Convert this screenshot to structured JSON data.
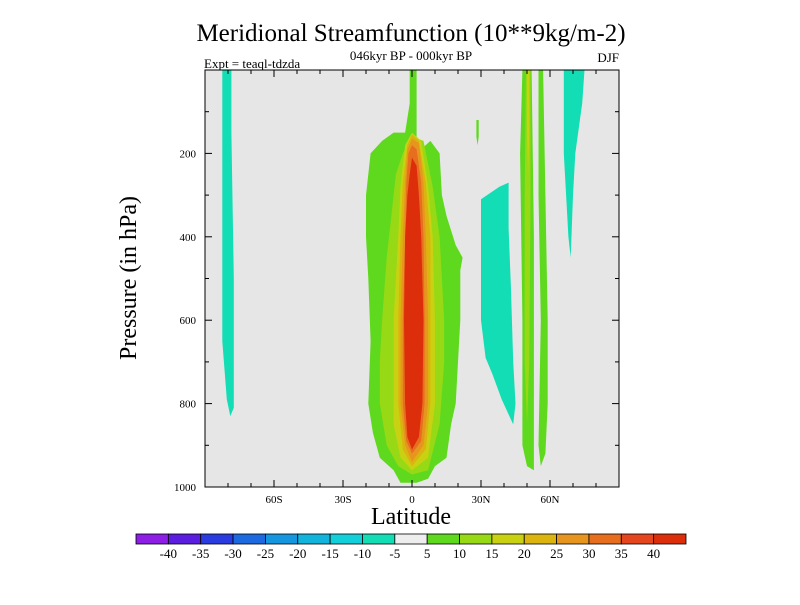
{
  "chart_data": {
    "type": "heatmap",
    "title": "Meridional Streamfunction (10**9kg/m-2)",
    "subtitle": "046kyr BP - 000kyr BP",
    "experiment": "Expt = teaql-tdzda",
    "season": "DJF",
    "xlabel": "Latitude",
    "ylabel": "Pressure (in hPa)",
    "xlim": [
      -90,
      90
    ],
    "ylim": [
      0,
      1000
    ],
    "x_ticks": [
      {
        "value": -60,
        "label": "60S"
      },
      {
        "value": -30,
        "label": "30S"
      },
      {
        "value": 0,
        "label": "0"
      },
      {
        "value": 30,
        "label": "30N"
      },
      {
        "value": 60,
        "label": "60N"
      }
    ],
    "y_ticks": [
      {
        "value": 200,
        "label": "200"
      },
      {
        "value": 400,
        "label": "400"
      },
      {
        "value": 600,
        "label": "600"
      },
      {
        "value": 800,
        "label": "800"
      },
      {
        "value": 1000,
        "label": "1000"
      }
    ],
    "background_color": "#e6e6e6",
    "colorbar": {
      "labels": [
        "-40",
        "-35",
        "-30",
        "-25",
        "-20",
        "-15",
        "-10",
        "-5",
        "5",
        "10",
        "15",
        "20",
        "25",
        "30",
        "35",
        "40"
      ],
      "colors": [
        "#8c1ee6",
        "#5b1ee0",
        "#2a3ce0",
        "#1d6ae0",
        "#1796e0",
        "#12b4dc",
        "#12cfd9",
        "#12ddb4",
        "#eeeeee",
        "#5ed91e",
        "#96d914",
        "#c8d212",
        "#dcb40f",
        "#e6961e",
        "#e66e1e",
        "#e6461e",
        "#dc2e0a"
      ]
    },
    "contours": [
      {
        "name": "sh-negative-cell",
        "level": "-10 to -5",
        "color": "#12ddb4",
        "points": [
          [
            -82.5,
            0
          ],
          [
            -78.5,
            0
          ],
          [
            -78.5,
            150
          ],
          [
            -77.5,
            500
          ],
          [
            -77.5,
            810
          ],
          [
            -79,
            830
          ],
          [
            -80.5,
            790
          ],
          [
            -82.5,
            650
          ]
        ]
      },
      {
        "name": "eq-green",
        "level": "5 to 10",
        "color": "#5ed91e",
        "points": [
          [
            -1,
            0
          ],
          [
            2,
            0
          ],
          [
            2,
            200
          ],
          [
            8,
            170
          ],
          [
            12,
            200
          ],
          [
            13,
            300
          ],
          [
            15,
            350
          ],
          [
            19,
            420
          ],
          [
            22,
            450
          ],
          [
            21,
            480
          ],
          [
            21,
            600
          ],
          [
            20,
            700
          ],
          [
            19,
            800
          ],
          [
            17,
            850
          ],
          [
            15,
            930
          ],
          [
            10,
            950
          ],
          [
            7,
            980
          ],
          [
            2,
            990
          ],
          [
            -5,
            990
          ],
          [
            -8,
            960
          ],
          [
            -14,
            930
          ],
          [
            -17,
            870
          ],
          [
            -19,
            800
          ],
          [
            -18,
            650
          ],
          [
            -19,
            500
          ],
          [
            -20,
            400
          ],
          [
            -20,
            300
          ],
          [
            -18,
            200
          ],
          [
            -13,
            170
          ],
          [
            -8,
            150
          ],
          [
            -3,
            150
          ],
          [
            -1,
            80
          ]
        ]
      },
      {
        "name": "eq-lightgreen",
        "level": "10 to 15",
        "color": "#96d914",
        "points": [
          [
            -7,
            250
          ],
          [
            -4,
            200
          ],
          [
            0,
            160
          ],
          [
            5,
            170
          ],
          [
            9,
            280
          ],
          [
            12,
            400
          ],
          [
            14,
            600
          ],
          [
            14,
            700
          ],
          [
            12,
            850
          ],
          [
            7,
            960
          ],
          [
            0,
            970
          ],
          [
            -6,
            950
          ],
          [
            -11,
            900
          ],
          [
            -14,
            800
          ],
          [
            -14,
            700
          ],
          [
            -13,
            600
          ],
          [
            -11,
            450
          ],
          [
            -9,
            350
          ]
        ]
      },
      {
        "name": "eq-yellow",
        "level": "15 to 20",
        "color": "#c8d212",
        "points": [
          [
            -3,
            180
          ],
          [
            0,
            150
          ],
          [
            4,
            170
          ],
          [
            7,
            280
          ],
          [
            9,
            400
          ],
          [
            10,
            600
          ],
          [
            10,
            800
          ],
          [
            7,
            930
          ],
          [
            0,
            960
          ],
          [
            -5,
            930
          ],
          [
            -8,
            850
          ],
          [
            -8,
            600
          ],
          [
            -6,
            400
          ],
          [
            -5,
            280
          ]
        ]
      },
      {
        "name": "eq-gold",
        "level": "20 to 25",
        "color": "#dcb40f",
        "points": [
          [
            -2,
            180
          ],
          [
            0,
            155
          ],
          [
            3,
            170
          ],
          [
            6,
            270
          ],
          [
            8,
            400
          ],
          [
            8,
            600
          ],
          [
            8,
            800
          ],
          [
            6,
            910
          ],
          [
            0,
            950
          ],
          [
            -4,
            910
          ],
          [
            -6,
            800
          ],
          [
            -6,
            600
          ],
          [
            -5,
            400
          ],
          [
            -4,
            270
          ]
        ]
      },
      {
        "name": "eq-orange",
        "level": "25 to 30",
        "color": "#e6961e",
        "points": [
          [
            -2,
            190
          ],
          [
            0,
            165
          ],
          [
            3,
            175
          ],
          [
            5,
            270
          ],
          [
            6,
            400
          ],
          [
            7,
            600
          ],
          [
            7,
            800
          ],
          [
            5,
            900
          ],
          [
            0,
            940
          ],
          [
            -3,
            900
          ],
          [
            -5,
            800
          ],
          [
            -5,
            600
          ],
          [
            -4,
            400
          ],
          [
            -3,
            270
          ]
        ]
      },
      {
        "name": "eq-darkorange",
        "level": "30 to 35",
        "color": "#e66e1e",
        "points": [
          [
            -1.5,
            200
          ],
          [
            0,
            180
          ],
          [
            2,
            190
          ],
          [
            4,
            270
          ],
          [
            5,
            400
          ],
          [
            5.5,
            600
          ],
          [
            5.5,
            800
          ],
          [
            4,
            890
          ],
          [
            0,
            920
          ],
          [
            -2.5,
            890
          ],
          [
            -4,
            800
          ],
          [
            -4,
            600
          ],
          [
            -3,
            400
          ],
          [
            -2.5,
            270
          ]
        ]
      },
      {
        "name": "eq-red",
        "level": "above 35",
        "color": "#dc2e0a",
        "points": [
          [
            -1,
            250
          ],
          [
            0,
            210
          ],
          [
            2,
            230
          ],
          [
            3,
            300
          ],
          [
            4,
            400
          ],
          [
            5,
            600
          ],
          [
            4.5,
            800
          ],
          [
            3,
            880
          ],
          [
            0,
            910
          ],
          [
            -2,
            880
          ],
          [
            -3,
            800
          ],
          [
            -3.5,
            600
          ],
          [
            -3,
            400
          ],
          [
            -2,
            300
          ]
        ]
      },
      {
        "name": "nh-cyan-band",
        "level": "-10 to -5",
        "color": "#12ddb4",
        "points": [
          [
            30,
            310
          ],
          [
            38,
            280
          ],
          [
            42,
            270
          ],
          [
            42,
            380
          ],
          [
            43,
            520
          ],
          [
            44,
            700
          ],
          [
            45,
            800
          ],
          [
            44,
            850
          ],
          [
            39,
            790
          ],
          [
            35,
            730
          ],
          [
            32,
            690
          ],
          [
            30,
            600
          ]
        ]
      },
      {
        "name": "nh-green-band",
        "level": "5 to 10",
        "color": "#5ed91e",
        "points": [
          [
            48,
            0
          ],
          [
            52,
            0
          ],
          [
            53,
            400
          ],
          [
            53,
            700
          ],
          [
            53,
            960
          ],
          [
            50,
            950
          ],
          [
            48,
            900
          ],
          [
            48,
            600
          ],
          [
            47,
            200
          ]
        ]
      },
      {
        "name": "nh-green-band-inner",
        "level": "10 to 15",
        "color": "#96d914",
        "points": [
          [
            49.5,
            0
          ],
          [
            51.5,
            0
          ],
          [
            51.5,
            300
          ],
          [
            51,
            700
          ],
          [
            50,
            850
          ],
          [
            49,
            700
          ],
          [
            49,
            300
          ]
        ]
      },
      {
        "name": "nh-green-band-core",
        "level": "15 to 20",
        "color": "#c8d212",
        "points": [
          [
            50,
            0
          ],
          [
            51,
            0
          ],
          [
            51,
            150
          ],
          [
            50.5,
            250
          ],
          [
            50,
            150
          ]
        ]
      },
      {
        "name": "nh-green-band-2",
        "level": "5 to 10",
        "color": "#5ed91e",
        "points": [
          [
            55,
            0
          ],
          [
            57,
            0
          ],
          [
            58,
            300
          ],
          [
            59,
            600
          ],
          [
            59,
            800
          ],
          [
            58,
            920
          ],
          [
            56,
            950
          ],
          [
            55,
            900
          ],
          [
            56,
            600
          ],
          [
            55,
            300
          ]
        ]
      },
      {
        "name": "nh-cyan-high",
        "level": "-10 to -5",
        "color": "#12ddb4",
        "points": [
          [
            66,
            0
          ],
          [
            75,
            0
          ],
          [
            74,
            80
          ],
          [
            71,
            200
          ],
          [
            70,
            300
          ],
          [
            69,
            450
          ],
          [
            68,
            400
          ],
          [
            67,
            300
          ],
          [
            66,
            200
          ]
        ]
      },
      {
        "name": "nh-small-green",
        "level": "5 to 10",
        "color": "#5ed91e",
        "points": [
          [
            28,
            120
          ],
          [
            29,
            120
          ],
          [
            29,
            160
          ],
          [
            28.5,
            180
          ],
          [
            28,
            160
          ]
        ]
      }
    ]
  }
}
